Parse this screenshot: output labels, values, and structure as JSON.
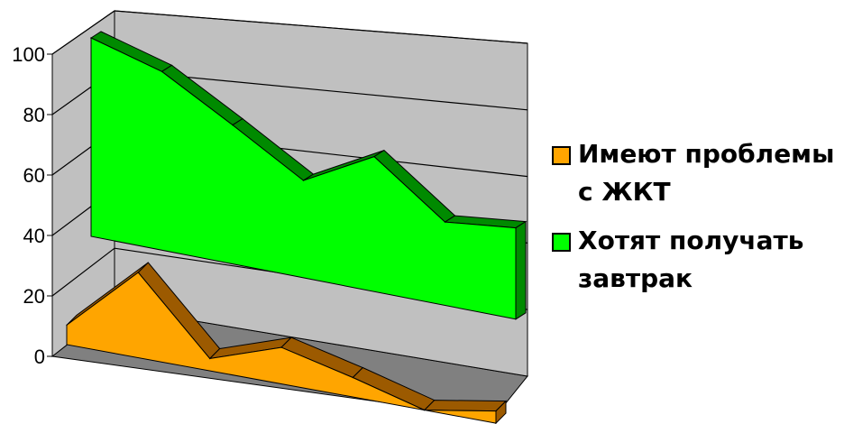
{
  "chart_data": {
    "type": "area",
    "x": [
      1,
      2,
      3,
      4,
      5,
      6,
      7
    ],
    "series": [
      {
        "name": "Имеют проблемы с ЖКТ",
        "values": [
          8,
          35,
          5,
          15,
          8,
          0,
          5
        ],
        "color": "#FFA500"
      },
      {
        "name": "Хотят получать завтрак",
        "values": [
          100,
          90,
          70,
          49,
          68,
          42,
          46
        ],
        "color": "#00FF00"
      }
    ],
    "ylim": [
      0,
      100
    ],
    "yticks": [
      "0",
      "20",
      "40",
      "60",
      "80",
      "100"
    ],
    "grid": true,
    "legend_position": "right"
  }
}
